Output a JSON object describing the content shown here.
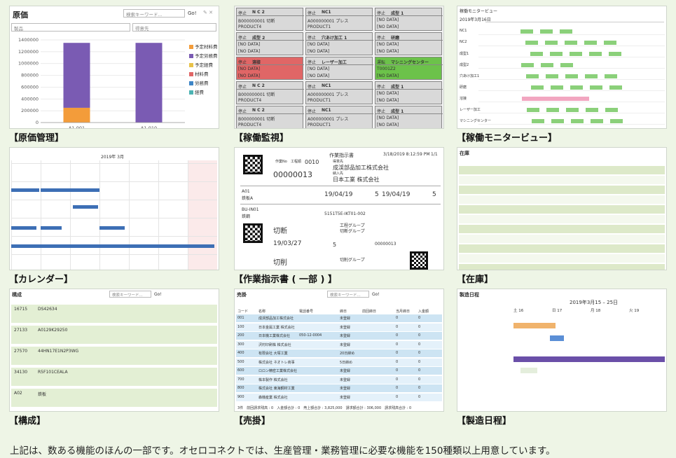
{
  "tiles": {
    "costing": {
      "caption": "【原価管理】",
      "title": "原価",
      "search_placeholder": "検索キーワード...",
      "go": "Go!",
      "field_product": "製品",
      "field_customer": "得意先",
      "chart_data": {
        "type": "bar",
        "categories": [
          "A1-001",
          "A1-010"
        ],
        "ylim": [
          0,
          1400000
        ],
        "yticks": [
          "1400000",
          "1200000",
          "1000000",
          "800000",
          "600000",
          "400000",
          "200000",
          "0"
        ],
        "series": [
          {
            "name": "予定材料費",
            "color": "#f39c3a",
            "values": [
              250000,
              0
            ]
          },
          {
            "name": "予定労務費",
            "color": "#7a5bb3",
            "values": [
              1100000,
              1350000
            ]
          }
        ],
        "legend": [
          "予定材料費",
          "予定労務費",
          "予定経費",
          "材料費",
          "労務費",
          "経費"
        ],
        "legend_colors": [
          "#f39c3a",
          "#7a5bb3",
          "#e8c24a",
          "#e06666",
          "#3d85c6",
          "#4db3b3"
        ]
      }
    },
    "monitor": {
      "caption": "【稼働監視】",
      "cards": [
        {
          "status": "停止",
          "name": "N C 2",
          "l1": "B000000001 切断",
          "l2": "PRODUCT4",
          "color": "#d9d9d9"
        },
        {
          "status": "停止",
          "name": "NC1",
          "l1": "A000000001 プレス",
          "l2": "PRODUCT1",
          "color": "#d9d9d9"
        },
        {
          "status": "停止",
          "name": "成型 1",
          "l1": "[NO DATA]",
          "l2": "[NO DATA]",
          "color": "#d9d9d9"
        },
        {
          "status": "停止",
          "name": "成型 2",
          "l1": "[NO DATA]",
          "l2": "[NO DATA]",
          "color": "#d9d9d9"
        },
        {
          "status": "停止",
          "name": "穴あけ加工 1",
          "l1": "[NO DATA]",
          "l2": "[NO DATA]",
          "color": "#d9d9d9"
        },
        {
          "status": "停止",
          "name": "研磨",
          "l1": "[NO DATA]",
          "l2": "[NO DATA]",
          "color": "#d9d9d9"
        },
        {
          "status": "停止",
          "name": "溶接",
          "l1": "[NO DATA]",
          "l2": "[NO DATA]",
          "color": "#e06666"
        },
        {
          "status": "停止",
          "name": "レーザー加工",
          "l1": "[NO DATA]",
          "l2": "[NO DATA]",
          "color": "#d9d9d9"
        },
        {
          "status": "運転",
          "name": "マシニングセンター",
          "l1": "T0001Z2",
          "l2": "[NO DATA]",
          "color": "#6cc24a"
        },
        {
          "status": "停止",
          "name": "N C 2",
          "l1": "B000000001 切断",
          "l2": "PRODUCT4",
          "color": "#d9d9d9"
        },
        {
          "status": "停止",
          "name": "NC1",
          "l1": "A000000001 プレス",
          "l2": "PRODUCT1",
          "color": "#d9d9d9"
        },
        {
          "status": "停止",
          "name": "成型 1",
          "l1": "[NO DATA]",
          "l2": "[NO DATA]",
          "color": "#d9d9d9"
        },
        {
          "status": "停止",
          "name": "N C 2",
          "l1": "B000000001 切断",
          "l2": "PRODUCT4",
          "color": "#d9d9d9"
        },
        {
          "status": "停止",
          "name": "NC1",
          "l1": "A000000001 プレス",
          "l2": "PRODUCT1",
          "color": "#d9d9d9"
        },
        {
          "status": "停止",
          "name": "成型 1",
          "l1": "[NO DATA]",
          "l2": "[NO DATA]",
          "color": "#d9d9d9"
        }
      ]
    },
    "monitor_view": {
      "caption": "【稼働モニタービュー】",
      "title": "稼働モニタービュー",
      "date": "2019年3月16日",
      "rows": [
        "NC1",
        "NC2",
        "成型1",
        "成型2",
        "穴あけ加工1",
        "研磨",
        "溶接",
        "レーザー加工",
        "マシニングセンター"
      ]
    },
    "calendar": {
      "caption": "【カレンダー】",
      "title": "2019年 3月"
    },
    "work_order": {
      "caption": "【作業指示書 ( 一部 ) 】",
      "header": "作業指示書",
      "timestamp": "3/18/2019 8:12:59 PM",
      "page": "1/1",
      "label_no": "作業No",
      "label_seq": "工程順",
      "label_seq_val": "0010",
      "order_no": "00000013",
      "customer_label": "得意先",
      "customer": "成渓部品加工株式会社",
      "delivery_label": "納入先",
      "delivery": "日本工業 株式会社",
      "item_code": "A01",
      "item_name": "鉄板A",
      "date1": "19/04/19",
      "qty1": "5",
      "date2": "19/04/19",
      "qty2": "5",
      "part_code": "BU-IN01",
      "part_name": "鉄鋼",
      "lot": "5151T5E-IKT01-002",
      "process_label": "工程グループ",
      "process": "切断",
      "process_group": "切断グループ",
      "date3": "19/03/27",
      "qty3": "5",
      "num3": "00000013",
      "process2": "切削",
      "process_group2": "切削グループ"
    },
    "inventory": {
      "caption": "【在庫】",
      "title": "在庫"
    },
    "structure": {
      "caption": "【構成】",
      "title": "構成",
      "go": "Go!",
      "search_placeholder": "検索キーワード...",
      "items": [
        {
          "code": "16715",
          "name": "DS42634"
        },
        {
          "code": "27133",
          "name": "A0129K29250"
        },
        {
          "code": "27570",
          "name": "44HN17E1N2P3WG"
        },
        {
          "code": "34130",
          "name": "R5F101CEALA"
        },
        {
          "code": "A02",
          "name": "鉄板"
        }
      ]
    },
    "receivable": {
      "caption": "【売掛】",
      "title": "売掛",
      "search_placeholder": "検索キーワード...",
      "go": "Go!",
      "headers": [
        "コード",
        "名称",
        "電話番号",
        "締日",
        "前回締日",
        "当月締日",
        "入金額"
      ],
      "rows": [
        [
          "001",
          "成渓部品加工株式会社",
          "",
          "未登録",
          "",
          "0",
          "0"
        ],
        [
          "100",
          "日本金属工業 株式会社",
          "",
          "未登録",
          "",
          "0",
          "0"
        ],
        [
          "200",
          "日本機工業株式会社",
          "050-12-0004",
          "未登録",
          "",
          "0",
          "0"
        ],
        [
          "300",
          "沢村印刷株 株式会社",
          "",
          "未登録",
          "",
          "0",
          "0"
        ],
        [
          "400",
          "有限会社 大塚工業",
          "",
          "20日締め",
          "",
          "0",
          "0"
        ],
        [
          "500",
          "株式会社 ネオトレ商事",
          "",
          "5日締め",
          "",
          "0",
          "0"
        ],
        [
          "600",
          "ロロン精密工業株式会社",
          "",
          "未登録",
          "",
          "0",
          "0"
        ],
        [
          "700",
          "株本製作 株式会社",
          "",
          "未登録",
          "",
          "0",
          "0"
        ],
        [
          "800",
          "株式会社 東海鋼材工業",
          "",
          "未登録",
          "",
          "0",
          "0"
        ],
        [
          "900",
          "森機産業 株式会社",
          "",
          "未登録",
          "",
          "0",
          "0"
        ]
      ],
      "footer": "3件　前回請求残高 : 0　入金額合計 : 0　売上額合計 : 3,825,000　請求額合計 : 306,000　請求残高合計 : 0"
    },
    "schedule": {
      "caption": "【製造日程】",
      "title": "製造日程",
      "range": "2019年3月15 – 25日",
      "days": [
        "土 16",
        "日 17",
        "月 18",
        "火 19"
      ]
    }
  },
  "footer_text": "上記は、数ある機能のほんの一部です。オセロコネクトでは、生産管理・業務管理に必要な機能を150種類以上用意しています。"
}
